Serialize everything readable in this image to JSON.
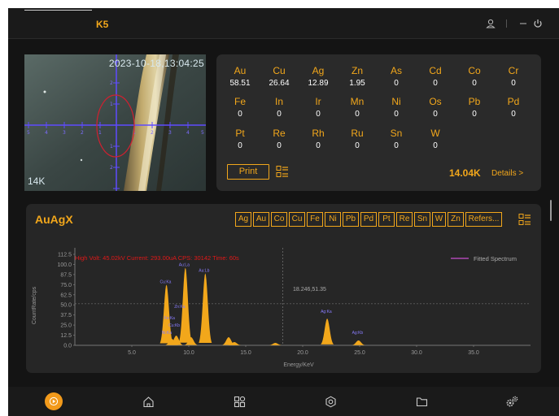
{
  "header": {
    "device_name": "K5"
  },
  "camera": {
    "timestamp": "2023-10-18,13:04:25",
    "zoom_label": "14K"
  },
  "elements": {
    "rows": [
      [
        {
          "symbol": "Au",
          "value": "58.51"
        },
        {
          "symbol": "Cu",
          "value": "26.64"
        },
        {
          "symbol": "Ag",
          "value": "12.89"
        },
        {
          "symbol": "Zn",
          "value": "1.95"
        },
        {
          "symbol": "As",
          "value": "0"
        },
        {
          "symbol": "Cd",
          "value": "0"
        },
        {
          "symbol": "Co",
          "value": "0"
        },
        {
          "symbol": "Cr",
          "value": "0"
        }
      ],
      [
        {
          "symbol": "Fe",
          "value": "0"
        },
        {
          "symbol": "In",
          "value": "0"
        },
        {
          "symbol": "Ir",
          "value": "0"
        },
        {
          "symbol": "Mn",
          "value": "0"
        },
        {
          "symbol": "Ni",
          "value": "0"
        },
        {
          "symbol": "Os",
          "value": "0"
        },
        {
          "symbol": "Pb",
          "value": "0"
        },
        {
          "symbol": "Pd",
          "value": "0"
        }
      ],
      [
        {
          "symbol": "Pt",
          "value": "0"
        },
        {
          "symbol": "Re",
          "value": "0"
        },
        {
          "symbol": "Rh",
          "value": "0"
        },
        {
          "symbol": "Ru",
          "value": "0"
        },
        {
          "symbol": "Sn",
          "value": "0"
        },
        {
          "symbol": "W",
          "value": "0"
        }
      ]
    ],
    "print_label": "Print",
    "cps_value": "14.04K",
    "details_label": "Details >"
  },
  "spectrum": {
    "title": "AuAgX",
    "filters": [
      "Ag",
      "Au",
      "Co",
      "Cu",
      "Fe",
      "Ni",
      "Pb",
      "Pd",
      "Pt",
      "Re",
      "Sn",
      "W",
      "Zn",
      "Refers..."
    ],
    "info_text": "High Volt: 45.02kV  Current: 293.00uA  CPS: 30142  Time: 60s",
    "cursor_label": "18.246,51.35"
  },
  "chart_data": {
    "type": "area",
    "title": "",
    "xlabel": "Energy/KeV",
    "ylabel": "CountRate/cps",
    "xlim": [
      0,
      40
    ],
    "ylim": [
      0,
      112.5
    ],
    "x_ticks": [
      5.0,
      10.0,
      15.0,
      20.0,
      25.0,
      30.0,
      35.0
    ],
    "y_ticks": [
      0.0,
      12.5,
      25.0,
      37.5,
      50.0,
      62.5,
      75.0,
      87.5,
      100.0,
      112.5
    ],
    "series": [
      {
        "name": "Fitted Spectrum",
        "color": "#c84fd0"
      },
      {
        "color": "#f2a71b",
        "peaks": [
          {
            "x": 8.04,
            "y": 75
          },
          {
            "x": 8.5,
            "y": 8
          },
          {
            "x": 8.9,
            "y": 12
          },
          {
            "x": 9.7,
            "y": 96
          },
          {
            "x": 10.2,
            "y": 10
          },
          {
            "x": 11.45,
            "y": 89
          },
          {
            "x": 13.5,
            "y": 10
          },
          {
            "x": 14.0,
            "y": 4
          },
          {
            "x": 17.6,
            "y": 3
          },
          {
            "x": 22.15,
            "y": 33
          },
          {
            "x": 24.9,
            "y": 6
          }
        ]
      }
    ],
    "peak_labels": [
      {
        "text": "Cu:Ka",
        "x": 8.04,
        "y": 75
      },
      {
        "text": "Au:La",
        "x": 9.7,
        "y": 96
      },
      {
        "text": "Au:Lb",
        "x": 11.45,
        "y": 89
      },
      {
        "text": "Zn:Ka",
        "x": 9.3,
        "y": 44
      },
      {
        "text": "Fe:Ka",
        "x": 8.4,
        "y": 30
      },
      {
        "text": "Cu:Kb",
        "x": 8.8,
        "y": 21
      },
      {
        "text": "Ni:Ka",
        "x": 8.2,
        "y": 12
      },
      {
        "text": "Ag:Ka",
        "x": 22.15,
        "y": 38
      },
      {
        "text": "Ag:Kb",
        "x": 24.9,
        "y": 12
      }
    ],
    "cursor": {
      "x": 18.246,
      "y": 51.35
    },
    "legend_position": "top-right",
    "grid": false
  }
}
